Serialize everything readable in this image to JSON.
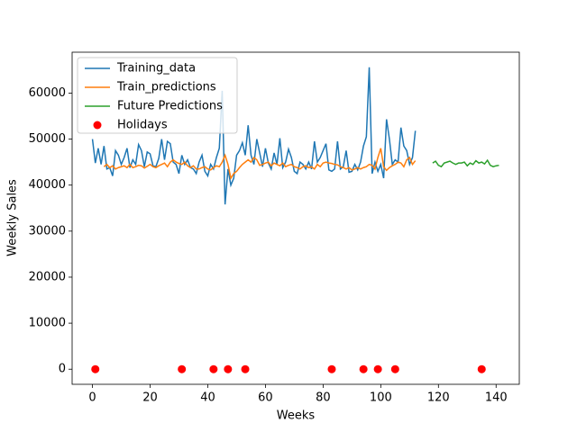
{
  "chart_data": {
    "type": "line",
    "xlabel": "Weeks",
    "ylabel": "Weekly Sales",
    "xlim": [
      -7.05,
      148.05
    ],
    "ylim": [
      -3280,
      68880
    ],
    "xticks": [
      0,
      20,
      40,
      60,
      80,
      100,
      120,
      140
    ],
    "yticks": [
      0,
      10000,
      20000,
      30000,
      40000,
      50000,
      60000
    ],
    "legend": "upper left",
    "series": [
      {
        "name": "Training_data",
        "color": "#1f77b4",
        "mode": "line",
        "x": [
          0,
          1,
          2,
          3,
          4,
          5,
          6,
          7,
          8,
          9,
          10,
          11,
          12,
          13,
          14,
          15,
          16,
          17,
          18,
          19,
          20,
          21,
          22,
          23,
          24,
          25,
          26,
          27,
          28,
          29,
          30,
          31,
          32,
          33,
          34,
          35,
          36,
          37,
          38,
          39,
          40,
          41,
          42,
          43,
          44,
          45,
          46,
          47,
          48,
          49,
          50,
          51,
          52,
          53,
          54,
          55,
          56,
          57,
          58,
          59,
          60,
          61,
          62,
          63,
          64,
          65,
          66,
          67,
          68,
          69,
          70,
          71,
          72,
          73,
          74,
          75,
          76,
          77,
          78,
          79,
          80,
          81,
          82,
          83,
          84,
          85,
          86,
          87,
          88,
          89,
          90,
          91,
          92,
          93,
          94,
          95,
          96,
          97,
          98,
          99,
          100,
          101,
          102,
          103,
          104,
          105,
          106,
          107,
          108,
          109,
          110,
          111,
          112
        ],
        "values": [
          50000,
          44800,
          48000,
          44500,
          48500,
          43500,
          43800,
          42000,
          47500,
          46500,
          44500,
          46000,
          48000,
          43800,
          45500,
          44500,
          48800,
          47500,
          44000,
          47200,
          46800,
          44200,
          44000,
          45800,
          50000,
          45500,
          49500,
          49000,
          45000,
          44500,
          42500,
          46500,
          44500,
          45500,
          43800,
          43500,
          42500,
          45000,
          46500,
          43000,
          42000,
          44500,
          43500,
          46000,
          48000,
          60500,
          35800,
          43500,
          40000,
          41500,
          46500,
          47500,
          49200,
          46500,
          53000,
          46500,
          44500,
          50000,
          47000,
          44000,
          48000,
          44800,
          43500,
          47000,
          44500,
          50200,
          43800,
          45000,
          47800,
          46000,
          43000,
          42500,
          45000,
          44500,
          43500,
          45000,
          43500,
          49500,
          45000,
          46000,
          47500,
          49000,
          43300,
          43000,
          43500,
          49500,
          43500,
          44000,
          47500,
          42800,
          43000,
          44500,
          43300,
          45000,
          48500,
          50500,
          65600,
          42500,
          45000,
          43000,
          44500,
          41500,
          54300,
          50000,
          44500,
          45500,
          45000,
          52500,
          48500,
          47500,
          44500,
          46000,
          51800
        ]
      },
      {
        "name": "Train_predictions",
        "color": "#ff7f0e",
        "mode": "line",
        "x": [
          4,
          5,
          6,
          7,
          8,
          9,
          10,
          11,
          12,
          13,
          14,
          15,
          16,
          17,
          18,
          19,
          20,
          21,
          22,
          23,
          24,
          25,
          26,
          27,
          28,
          29,
          30,
          31,
          32,
          33,
          34,
          35,
          36,
          37,
          38,
          39,
          40,
          41,
          42,
          43,
          44,
          45,
          46,
          47,
          48,
          49,
          50,
          51,
          52,
          53,
          54,
          55,
          56,
          57,
          58,
          59,
          60,
          61,
          62,
          63,
          64,
          65,
          66,
          67,
          68,
          69,
          70,
          71,
          72,
          73,
          74,
          75,
          76,
          77,
          78,
          79,
          80,
          81,
          82,
          83,
          84,
          85,
          86,
          87,
          88,
          89,
          90,
          91,
          92,
          93,
          94,
          95,
          96,
          97,
          98,
          99,
          100,
          101,
          102,
          103,
          104,
          105,
          106,
          107,
          108,
          109,
          110,
          111,
          112
        ],
        "values": [
          44000,
          44500,
          43800,
          44200,
          43500,
          43800,
          44000,
          44200,
          43800,
          44500,
          43800,
          44000,
          44300,
          44200,
          43700,
          44100,
          44500,
          44000,
          43800,
          44200,
          44500,
          44800,
          44000,
          45000,
          45500,
          45000,
          44700,
          44500,
          45000,
          44200,
          43800,
          44200,
          43500,
          43500,
          43800,
          44000,
          43500,
          43300,
          43800,
          44200,
          44000,
          45000,
          46500,
          44500,
          41500,
          42500,
          43000,
          43800,
          44500,
          45000,
          45500,
          45000,
          46000,
          45500,
          44300,
          44500,
          44800,
          45000,
          44200,
          44800,
          44500,
          44200,
          44800,
          44000,
          44300,
          44500,
          44000,
          43800,
          43500,
          44000,
          44200,
          43800,
          44000,
          43500,
          44500,
          44000,
          44800,
          45000,
          44800,
          44700,
          44500,
          44400,
          44000,
          43800,
          43500,
          43800,
          43300,
          43500,
          43800,
          43500,
          43800,
          44000,
          44500,
          44300,
          43500,
          46000,
          48000,
          44000,
          43200,
          43800,
          44200,
          44500,
          45000,
          44800,
          44000,
          45500,
          46000,
          44500,
          45300
        ]
      },
      {
        "name": "Future Predictions",
        "color": "#2ca02c",
        "mode": "line",
        "x": [
          118,
          119,
          120,
          121,
          122,
          123,
          124,
          125,
          126,
          127,
          128,
          129,
          130,
          131,
          132,
          133,
          134,
          135,
          136,
          137,
          138,
          139,
          140,
          141
        ],
        "values": [
          44800,
          45200,
          44300,
          44000,
          44800,
          45000,
          45200,
          44800,
          44500,
          44800,
          44800,
          45000,
          44200,
          44800,
          44500,
          45300,
          44800,
          45000,
          44600,
          45400,
          44300,
          44000,
          44200,
          44300
        ]
      },
      {
        "name": "Holidays",
        "color": "#ff0000",
        "mode": "markers",
        "x": [
          1,
          31,
          42,
          47,
          53,
          83,
          94,
          99,
          105,
          135
        ],
        "values": [
          0,
          0,
          0,
          0,
          0,
          0,
          0,
          0,
          0,
          0
        ]
      }
    ]
  }
}
